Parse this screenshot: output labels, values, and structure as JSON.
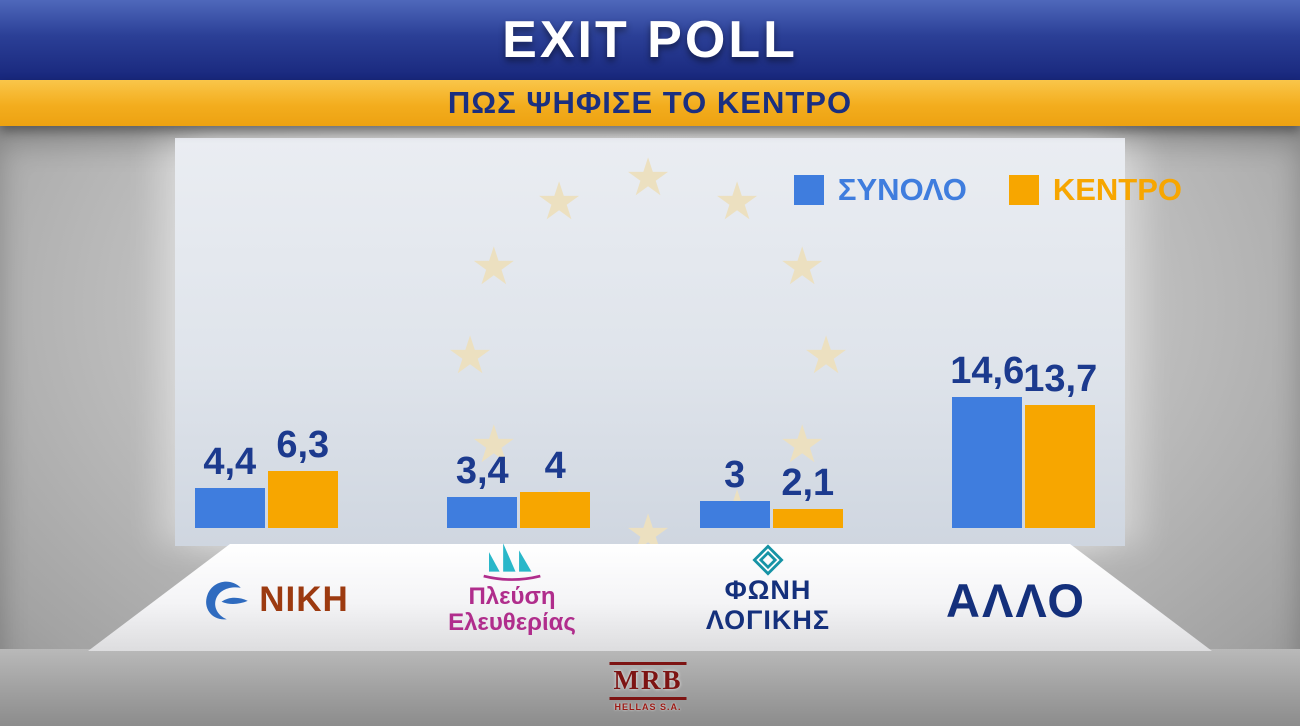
{
  "header": {
    "title": "EXIT POLL",
    "subtitle": "ΠΩΣ ΨΗΦΙΣΕ ΤΟ ΚΕΝΤΡΟ",
    "banner_color": "#22379a",
    "subtitle_band_color": "#f3ad1e"
  },
  "legend": [
    {
      "label": "ΣΥΝΟΛΟ",
      "color": "#3f7dde"
    },
    {
      "label": "ΚΕΝΤΡΟ",
      "color": "#f7a600"
    }
  ],
  "chart_data": {
    "type": "bar",
    "title": "EXIT POLL — ΠΩΣ ΨΗΦΙΣΕ ΤΟ ΚΕΝΤΡΟ",
    "categories": [
      "ΝΙΚΗ",
      "Πλεύση Ελευθερίας",
      "ΦΩΝΗ ΛΟΓΙΚΗΣ",
      "ΑΛΛΟ"
    ],
    "series": [
      {
        "name": "ΣΥΝΟΛΟ",
        "color": "#3f7dde",
        "values": [
          4.4,
          3.4,
          3,
          14.6
        ],
        "display_labels": [
          "4,4",
          "3,4",
          "3",
          "14,6"
        ]
      },
      {
        "name": "ΚΕΝΤΡΟ",
        "color": "#f7a600",
        "values": [
          6.3,
          4,
          2.1,
          13.7
        ],
        "display_labels": [
          "6,3",
          "4",
          "2,1",
          "13,7"
        ]
      }
    ],
    "ylim": [
      0,
      16
    ],
    "grid": false,
    "legend_position": "top-right",
    "value_label_color": "#1c3a8e"
  },
  "parties": [
    {
      "name": "ΝΙΚΗ",
      "text_color": "#9c3a10",
      "logo": "niki-bird"
    },
    {
      "name": "Πλεύση Ελευθερίας",
      "line1": "Πλεύση",
      "line2": "Ελευθερίας",
      "text_color": "#b02d8c",
      "logo": "sailboat"
    },
    {
      "name": "ΦΩΝΗ ΛΟΓΙΚΗΣ",
      "line1": "ΦΩΝΗ",
      "line2": "ΛΟΓΙΚΗΣ",
      "text_color": "#14307c",
      "logo": "diamond-spiral"
    },
    {
      "name": "ΑΛΛΟ",
      "text_color": "#14307c"
    }
  ],
  "footer": {
    "agency": "MRB",
    "agency_subtitle": "HELLAS S.A."
  }
}
